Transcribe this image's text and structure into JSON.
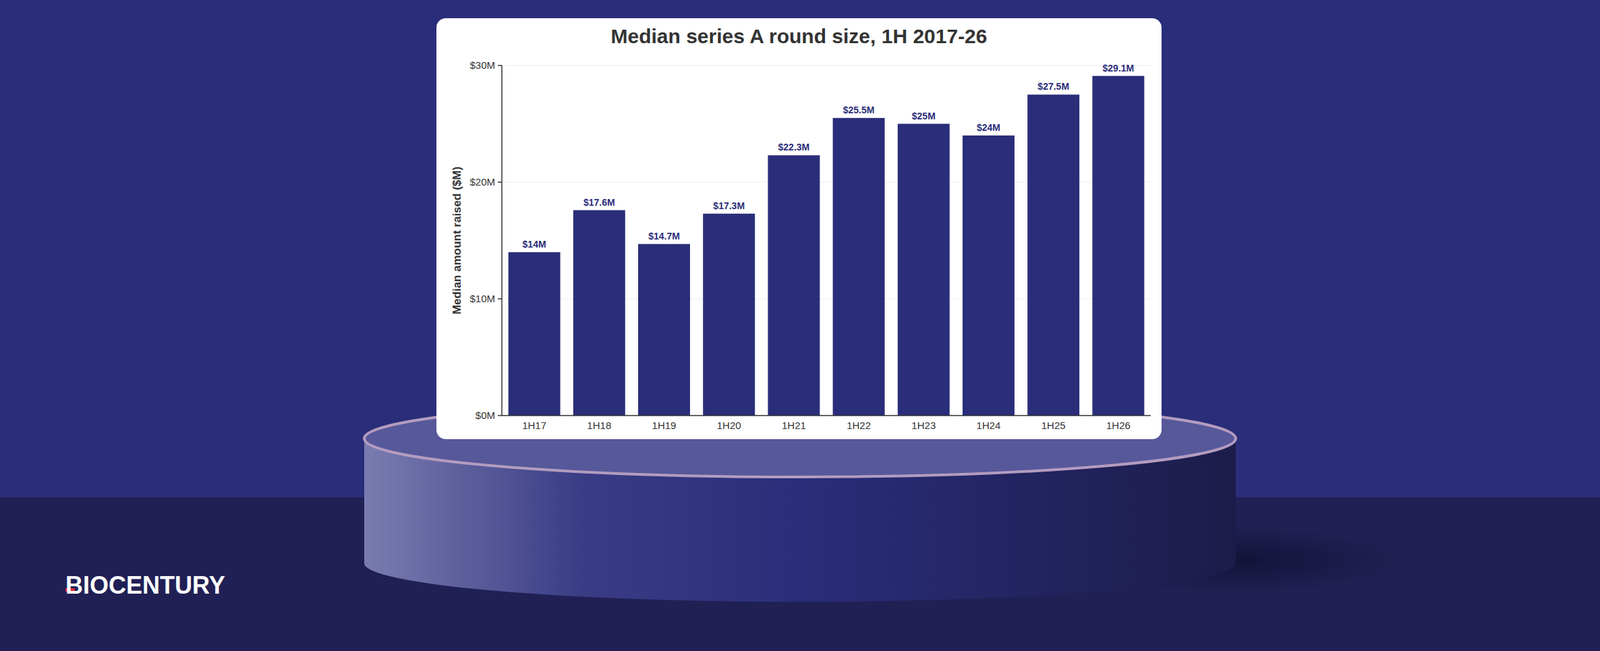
{
  "brand": "BIOCENTURY",
  "chart_data": {
    "type": "bar",
    "title": "Median series A round size, 1H 2017-26",
    "y_label": "Median amount raised ($M)",
    "categories": [
      "1H17",
      "1H18",
      "1H19",
      "1H20",
      "1H21",
      "1H22",
      "1H23",
      "1H24",
      "1H25",
      "1H26"
    ],
    "values": [
      14,
      17.6,
      14.7,
      17.3,
      22.3,
      25.5,
      25,
      24,
      27.5,
      29.1
    ],
    "value_labels": [
      "$14M",
      "$17.6M",
      "$14.7M",
      "$17.3M",
      "$22.3M",
      "$25.5M",
      "$25M",
      "$24M",
      "$27.5M",
      "$29.1M"
    ],
    "color": "#2a2d79",
    "ylim": [
      0,
      30
    ],
    "yticks": [
      {
        "value": 0,
        "label": "$0M"
      },
      {
        "value": 10,
        "label": "$10M"
      },
      {
        "value": 20,
        "label": "$20M"
      },
      {
        "value": 30,
        "label": "$30M"
      }
    ],
    "grid": true,
    "data_labels": true
  }
}
